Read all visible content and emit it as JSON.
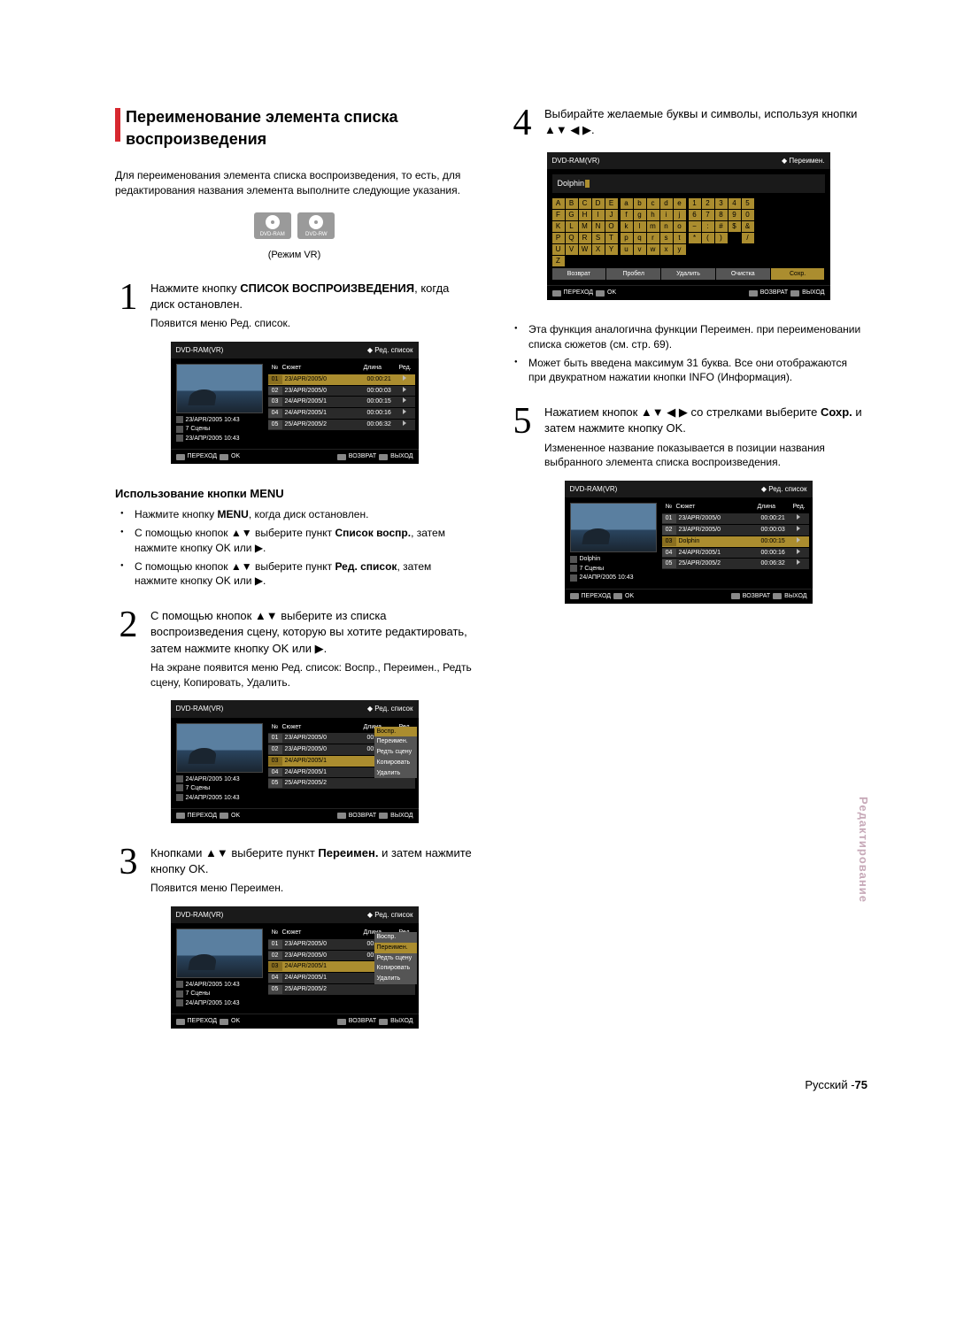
{
  "title": "Переименование элемента списка воспроизведения",
  "intro": "Для переименования элемента списка воспроизведения, то есть, для редактирования названия элемента выполните следующие указания.",
  "disc_labels": [
    "DVD-RAM",
    "DVD-RW"
  ],
  "mode_caption": "(Режим VR)",
  "step1": {
    "text_a": "Нажмите кнопку ",
    "action": "СПИСОК ВОСПРОИЗВЕДЕНИЯ",
    "text_b": ", когда диск остановлен.",
    "sub": "Появится меню Ред. список."
  },
  "menu_h": "Использование кнопки MENU",
  "menu_items": [
    {
      "pre": "Нажмите кнопку ",
      "b": "MENU",
      "post": ", когда диск остановлен."
    },
    {
      "pre": "С помощью кнопок ▲▼ выберите пункт ",
      "b": "Список воспр.",
      "post": ", затем нажмите кнопку OK или ▶."
    },
    {
      "pre": "С помощью кнопок ▲▼ выберите пункт ",
      "b": "Ред. список",
      "post": ", затем нажмите кнопку OK или ▶."
    }
  ],
  "step2": {
    "text": "С помощью кнопок ▲▼ выберите из списка воспроизведения сцену, которую вы хотите редактировать, затем нажмите кнопку OK или ▶.",
    "sub": "На экране появится меню Ред. список: Воспр., Переимен., Редть сцену, Копировать, Удалить."
  },
  "step3": {
    "text_a": "Кнопками ▲▼ выберите пункт ",
    "b": "Переимен.",
    "text_b": " и затем нажмите кнопку OK.",
    "sub": "Появится меню Переимен."
  },
  "step4": {
    "text": "Выбирайте желаемые буквы и символы, используя кнопки ▲▼ ◀ ▶."
  },
  "note_items": [
    "Эта функция аналогична функции Переимен. при переименовании списка сюжетов (см. стр. 69).",
    "Может быть введена максимум 31 буква. Все они отображаются при двукратном нажатии кнопки INFO (Информация)."
  ],
  "step5": {
    "text_a": "Нажатием кнопок ▲▼ ◀ ▶ со стрелками выберите ",
    "b": "Сохр.",
    "text_b": " и затем нажмите кнопку OK.",
    "sub": "Измененное название показывается в позиции названия выбранного элемента списка воспроизведения."
  },
  "osd": {
    "device": "DVD-RAM(VR)",
    "title_hdr": "Ред. список",
    "title_hdr2": "Переимен.",
    "cols": {
      "n": "№",
      "scene": "Сюжет",
      "len": "Длина",
      "ed": "Ред."
    },
    "rows": [
      {
        "n": "01",
        "t": "23/APR/2005/0",
        "d": "00:00:21"
      },
      {
        "n": "02",
        "t": "23/APR/2005/0",
        "d": "00:00:03"
      },
      {
        "n": "03",
        "t": "24/APR/2005/1",
        "d": "00:00:15"
      },
      {
        "n": "04",
        "t": "24/APR/2005/1",
        "d": "00:00:16"
      },
      {
        "n": "05",
        "t": "25/APR/2005/2",
        "d": "00:06:32"
      }
    ],
    "rows_b": [
      {
        "n": "01",
        "t": "23/APR/2005/0",
        "d": "00:00:21"
      },
      {
        "n": "02",
        "t": "23/APR/2005/0",
        "d": "00:00:03"
      },
      {
        "n": "03",
        "t": "Dolphin",
        "d": "00:00:15"
      },
      {
        "n": "04",
        "t": "24/APR/2005/1",
        "d": "00:00:16"
      },
      {
        "n": "05",
        "t": "25/APR/2005/2",
        "d": "00:06:32"
      }
    ],
    "meta1": {
      "date": "23/APR/2005 10:43",
      "scenes": "7 Сцены",
      "date2": "23/АПР/2005 10:43"
    },
    "meta2": {
      "date": "24/APR/2005 10:43",
      "scenes": "7 Сцены",
      "date2": "24/АПР/2005 10:43"
    },
    "meta3": {
      "name": "Dolphin",
      "scenes": "7 Сцены",
      "date2": "24/АПР/2005 10:43"
    },
    "ctx": [
      "Воспр.",
      "Переимен.",
      "Редть сцену",
      "Копировать",
      "Удалить"
    ],
    "footer": {
      "move": "ПЕРЕХОД",
      "ok": "OK",
      "ret": "ВОЗВРАТ",
      "exit": "ВЫХОД"
    },
    "kb_input": "Dolphin",
    "kb_upper": [
      "A",
      "B",
      "C",
      "D",
      "E",
      "F",
      "G",
      "H",
      "I",
      "J",
      "K",
      "L",
      "M",
      "N",
      "O",
      "P",
      "Q",
      "R",
      "S",
      "T",
      "U",
      "V",
      "W",
      "X",
      "Y",
      "Z"
    ],
    "kb_lower": [
      "a",
      "b",
      "c",
      "d",
      "e",
      "f",
      "g",
      "h",
      "i",
      "j",
      "k",
      "l",
      "m",
      "n",
      "o",
      "p",
      "q",
      "r",
      "s",
      "t",
      "u",
      "v",
      "w",
      "x",
      "y"
    ],
    "kb_num": [
      "1",
      "2",
      "3",
      "4",
      "5",
      "6",
      "7",
      "8",
      "9",
      "0",
      "−",
      ":",
      "#",
      "$",
      "&",
      "*",
      "(",
      ")",
      "",
      "/"
    ],
    "kb_acts": [
      "Возврат",
      "Пробел",
      "Удалить",
      "Очистка",
      "Сохр."
    ]
  },
  "side_tab": "Редактирование",
  "footer_lang": "Русский -",
  "footer_page": "75"
}
